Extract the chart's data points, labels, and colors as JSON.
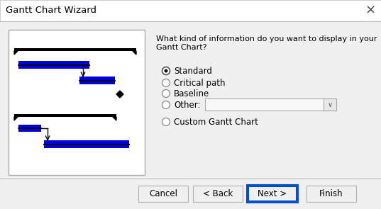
{
  "title": "Gantt Chart Wizard",
  "bg_color": "#f0f0f0",
  "dialog_bg": "#f0f0f0",
  "preview_bg": "#ffffff",
  "preview_border": "#aaaaaa",
  "title_bar_bg": "#ffffff",
  "title_bar_text": "Gantt Chart Wizard",
  "question_text": "What kind of information do you want to display in your\nGantt Chart?",
  "radio_options": [
    "Standard",
    "Critical path",
    "Baseline",
    "Other:",
    "Custom Gantt Chart"
  ],
  "radio_selected": 0,
  "buttons": [
    "Cancel",
    "< Back",
    "Next >",
    "Finish"
  ],
  "bar_color_blue": "#0000dd",
  "bar_color_black": "#000000",
  "close_symbol": "×"
}
